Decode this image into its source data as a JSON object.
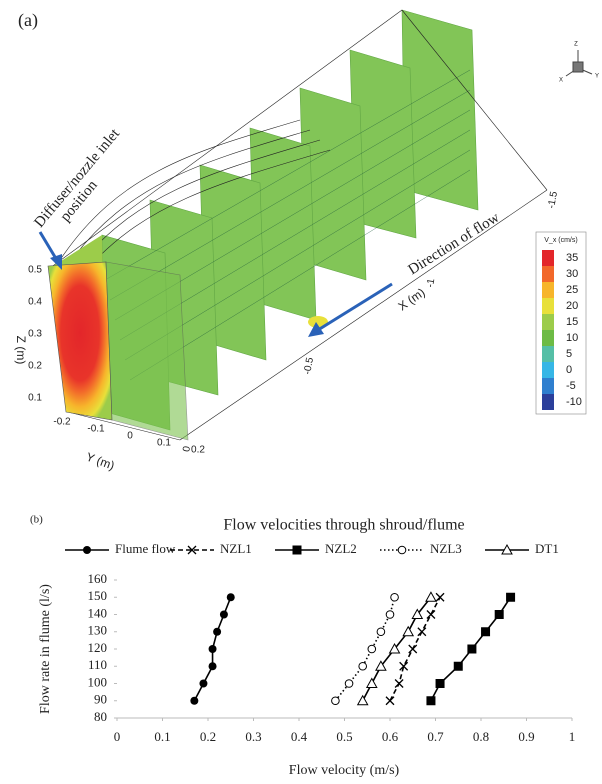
{
  "panel_a": {
    "label": "(a)",
    "inlet_label": [
      "Diffuser/nozzle inlet",
      "position"
    ],
    "flow_label": "Direction of flow",
    "z_axis": {
      "label": "Z (m)",
      "ticks": [
        0.5,
        0.4,
        0.3,
        0.2,
        0.1
      ]
    },
    "y_axis": {
      "label": "Y (m)",
      "ticks": [
        -0.2,
        -0.1,
        0,
        0.1,
        0.2
      ]
    },
    "x_axis": {
      "label": "X (m)",
      "ticks": [
        -1.5,
        -1,
        -0.5,
        0
      ]
    },
    "triad": [
      "Z",
      "X",
      "Y"
    ],
    "colorbar": {
      "title": "V_x (cm/s)",
      "ticks": [
        35,
        30,
        25,
        20,
        15,
        10,
        5,
        0,
        -5,
        -10
      ],
      "colors": [
        "#e3262a",
        "#f2682a",
        "#f7b52b",
        "#e8e03a",
        "#9ccc4a",
        "#6dbb45",
        "#55bfa6",
        "#36b6e6",
        "#2f7fcf",
        "#2b3f9b"
      ]
    }
  },
  "chart_data": {
    "type": "line",
    "panel_label": "(b)",
    "title": "Flow velocities through shroud/flume",
    "x_label": "Flow velocity (m/s)",
    "y_label": "Flow rate in flume (l/s)",
    "xlim": [
      0,
      1
    ],
    "xticks": [
      0,
      0.1,
      0.2,
      0.3,
      0.4,
      0.5,
      0.6,
      0.7,
      0.8,
      0.9,
      1
    ],
    "ylim": [
      80,
      160
    ],
    "yticks": [
      80,
      90,
      100,
      110,
      120,
      130,
      140,
      150,
      160
    ],
    "series": [
      {
        "name": "Flume flow",
        "color": "#000000",
        "marker": "filled-circle",
        "dash": "solid",
        "x": [
          0.17,
          0.19,
          0.21,
          0.21,
          0.22,
          0.235,
          0.25
        ],
        "values": [
          90,
          100,
          110,
          120,
          130,
          140,
          150
        ]
      },
      {
        "name": "NZL1",
        "color": "#000000",
        "marker": "cross",
        "dash": "dashed",
        "x": [
          0.6,
          0.62,
          0.63,
          0.65,
          0.67,
          0.69,
          0.71
        ],
        "values": [
          90,
          100,
          110,
          120,
          130,
          140,
          150
        ]
      },
      {
        "name": "NZL2",
        "color": "#000000",
        "marker": "filled-square",
        "dash": "solid",
        "x": [
          0.69,
          0.71,
          0.75,
          0.78,
          0.81,
          0.84,
          0.865
        ],
        "values": [
          90,
          100,
          110,
          120,
          130,
          140,
          150
        ]
      },
      {
        "name": "NZL3",
        "color": "#000000",
        "marker": "open-circle",
        "dash": "dotted",
        "x": [
          0.48,
          0.51,
          0.54,
          0.56,
          0.58,
          0.6,
          0.61
        ],
        "values": [
          90,
          100,
          110,
          120,
          130,
          140,
          150
        ]
      },
      {
        "name": "DT1",
        "color": "#000000",
        "marker": "open-triangle",
        "dash": "solid",
        "x": [
          0.54,
          0.56,
          0.58,
          0.61,
          0.64,
          0.66,
          0.69
        ],
        "values": [
          90,
          100,
          110,
          120,
          130,
          140,
          150
        ]
      }
    ]
  }
}
